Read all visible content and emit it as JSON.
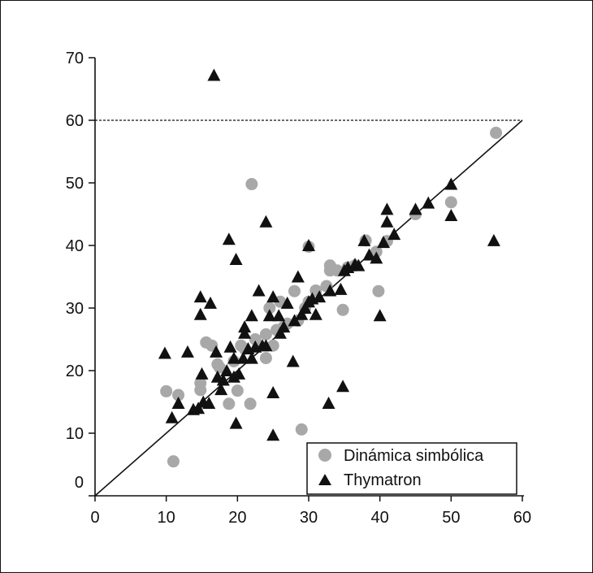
{
  "chart_data": {
    "type": "scatter",
    "xlim": [
      0,
      60
    ],
    "ylim": [
      0,
      70
    ],
    "x_ticks": [
      0,
      10,
      20,
      30,
      40,
      50,
      60
    ],
    "y_ticks": [
      0,
      10,
      20,
      30,
      40,
      50,
      60,
      70
    ],
    "x_tick_labels": [
      "0",
      "10",
      "20",
      "30",
      "40",
      "50",
      "60"
    ],
    "y_tick_labels": [
      "0",
      "10",
      "20",
      "30",
      "40",
      "50",
      "60",
      "70"
    ],
    "grid": false,
    "legend_position": "bottom-right",
    "reference_lines": [
      {
        "kind": "horizontal",
        "y": 60,
        "style": "dashed"
      },
      {
        "kind": "identity",
        "from": [
          0,
          0
        ],
        "to": [
          60,
          60
        ],
        "style": "solid"
      }
    ],
    "series": [
      {
        "name": "Dinámica simbólica",
        "marker": "circle",
        "color": "#a8a8a8",
        "points": [
          [
            10,
            16.7
          ],
          [
            11,
            5.5
          ],
          [
            11.7,
            16.1
          ],
          [
            14.8,
            16.9
          ],
          [
            14.8,
            18.0
          ],
          [
            15.6,
            24.5
          ],
          [
            16.4,
            24.0
          ],
          [
            17.2,
            21.0
          ],
          [
            17.5,
            20.5
          ],
          [
            18.8,
            14.7
          ],
          [
            19.5,
            21.5
          ],
          [
            20.0,
            16.8
          ],
          [
            20.5,
            24.0
          ],
          [
            21.0,
            23.5
          ],
          [
            21.8,
            14.7
          ],
          [
            22.0,
            49.8
          ],
          [
            22.5,
            25.0
          ],
          [
            23.0,
            24.0
          ],
          [
            24.0,
            22.0
          ],
          [
            24.0,
            25.8
          ],
          [
            24.5,
            30.0
          ],
          [
            25.0,
            24.0
          ],
          [
            25.5,
            26.5
          ],
          [
            26.0,
            31.0
          ],
          [
            26.5,
            27.0
          ],
          [
            27.0,
            27.5
          ],
          [
            28.0,
            32.7
          ],
          [
            28.5,
            28.0
          ],
          [
            29.0,
            10.6
          ],
          [
            29.5,
            30.0
          ],
          [
            30.0,
            39.8
          ],
          [
            30.0,
            31.0
          ],
          [
            31.0,
            32.8
          ],
          [
            32.5,
            33.5
          ],
          [
            33.0,
            36.0
          ],
          [
            33.0,
            36.8
          ],
          [
            34.0,
            36.0
          ],
          [
            34.8,
            29.7
          ],
          [
            35.5,
            36.5
          ],
          [
            36.5,
            36.8
          ],
          [
            38.0,
            40.8
          ],
          [
            39.5,
            39.0
          ],
          [
            39.8,
            32.7
          ],
          [
            41.0,
            40.7
          ],
          [
            45.0,
            45.0
          ],
          [
            50.0,
            46.9
          ],
          [
            56.3,
            58.0
          ]
        ]
      },
      {
        "name": "Thymatron",
        "marker": "triangle",
        "color": "#111111",
        "points": [
          [
            9.8,
            22.8
          ],
          [
            10.8,
            12.5
          ],
          [
            11.7,
            14.8
          ],
          [
            13.0,
            23.0
          ],
          [
            13.8,
            13.8
          ],
          [
            14.5,
            14.0
          ],
          [
            14.8,
            31.8
          ],
          [
            14.8,
            29.0
          ],
          [
            15.0,
            19.5
          ],
          [
            15.2,
            15.0
          ],
          [
            16.0,
            14.8
          ],
          [
            16.2,
            30.8
          ],
          [
            16.7,
            67.2
          ],
          [
            17.0,
            23.0
          ],
          [
            17.2,
            19.0
          ],
          [
            17.7,
            17.0
          ],
          [
            18.0,
            18.5
          ],
          [
            18.5,
            20.0
          ],
          [
            18.8,
            41.0
          ],
          [
            19.0,
            23.8
          ],
          [
            19.5,
            19.0
          ],
          [
            19.5,
            22.0
          ],
          [
            19.8,
            37.8
          ],
          [
            19.8,
            11.6
          ],
          [
            20.2,
            19.5
          ],
          [
            20.8,
            22.0
          ],
          [
            21.0,
            26.0
          ],
          [
            21.0,
            27.0
          ],
          [
            21.5,
            23.5
          ],
          [
            22.0,
            22.0
          ],
          [
            22.0,
            28.8
          ],
          [
            22.5,
            23.8
          ],
          [
            23.0,
            32.8
          ],
          [
            23.5,
            24.0
          ],
          [
            24.0,
            43.8
          ],
          [
            24.0,
            24.0
          ],
          [
            24.5,
            28.8
          ],
          [
            25.0,
            16.5
          ],
          [
            25.0,
            9.7
          ],
          [
            25.0,
            31.8
          ],
          [
            25.8,
            28.8
          ],
          [
            26.0,
            26.0
          ],
          [
            26.5,
            27.0
          ],
          [
            27.0,
            30.8
          ],
          [
            27.8,
            21.5
          ],
          [
            28.0,
            28.0
          ],
          [
            28.5,
            35.0
          ],
          [
            29.0,
            29.0
          ],
          [
            29.5,
            30.0
          ],
          [
            30.0,
            40.0
          ],
          [
            30.0,
            31.0
          ],
          [
            30.5,
            31.5
          ],
          [
            31.0,
            29.0
          ],
          [
            31.5,
            31.8
          ],
          [
            32.8,
            14.8
          ],
          [
            33.0,
            32.8
          ],
          [
            34.5,
            33.0
          ],
          [
            34.8,
            17.5
          ],
          [
            35.0,
            36.0
          ],
          [
            35.5,
            36.5
          ],
          [
            36.5,
            37.0
          ],
          [
            37.0,
            36.8
          ],
          [
            37.8,
            40.8
          ],
          [
            38.5,
            38.5
          ],
          [
            39.5,
            38.0
          ],
          [
            40.0,
            28.8
          ],
          [
            40.5,
            40.5
          ],
          [
            41.0,
            45.8
          ],
          [
            41.0,
            43.8
          ],
          [
            42.0,
            41.8
          ],
          [
            45.0,
            45.8
          ],
          [
            46.8,
            46.8
          ],
          [
            50.0,
            49.8
          ],
          [
            50.0,
            44.8
          ],
          [
            56.0,
            40.8
          ]
        ]
      }
    ]
  }
}
